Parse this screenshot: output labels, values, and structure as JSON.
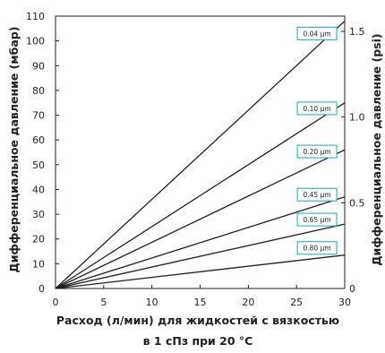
{
  "chart_data": {
    "type": "line",
    "xlabel_line1": "Расход (л/мин) для жидкостей с вязкостью",
    "xlabel_line2": "в 1 сПз при  20 °C",
    "ylabel_left": "Дифференциальное давление (мбар)",
    "ylabel_right": "Дифференциальное давление (psi)",
    "xlim": [
      0,
      30
    ],
    "ylim_left": [
      0,
      110
    ],
    "ylim_right": [
      0,
      1.6
    ],
    "x_ticks": [
      "0",
      "5",
      "10",
      "15",
      "20",
      "25",
      "30"
    ],
    "y_left_ticks": [
      "0",
      "10",
      "20",
      "30",
      "40",
      "50",
      "60",
      "70",
      "80",
      "90",
      "100",
      "110"
    ],
    "y_right_ticks": [
      "0",
      "0.5",
      "1.0",
      "1.5"
    ],
    "grid": false,
    "series": [
      {
        "name": "0.04 μm",
        "x": [
          0,
          30
        ],
        "y": [
          0,
          108
        ]
      },
      {
        "name": "0.10 μm",
        "x": [
          0,
          30
        ],
        "y": [
          0,
          75
        ]
      },
      {
        "name": "0.20 μm",
        "x": [
          0,
          30
        ],
        "y": [
          0,
          56
        ]
      },
      {
        "name": "0.45 μm",
        "x": [
          0,
          30
        ],
        "y": [
          0,
          37
        ]
      },
      {
        "name": "0.65 μm",
        "x": [
          0,
          30
        ],
        "y": [
          0,
          26
        ]
      },
      {
        "name": "0.80 μm",
        "x": [
          0,
          30
        ],
        "y": [
          0,
          13.5
        ]
      }
    ],
    "colors": {
      "line": "#231f20",
      "label_border": "#1aa7b6",
      "axis": "#231f20"
    }
  }
}
